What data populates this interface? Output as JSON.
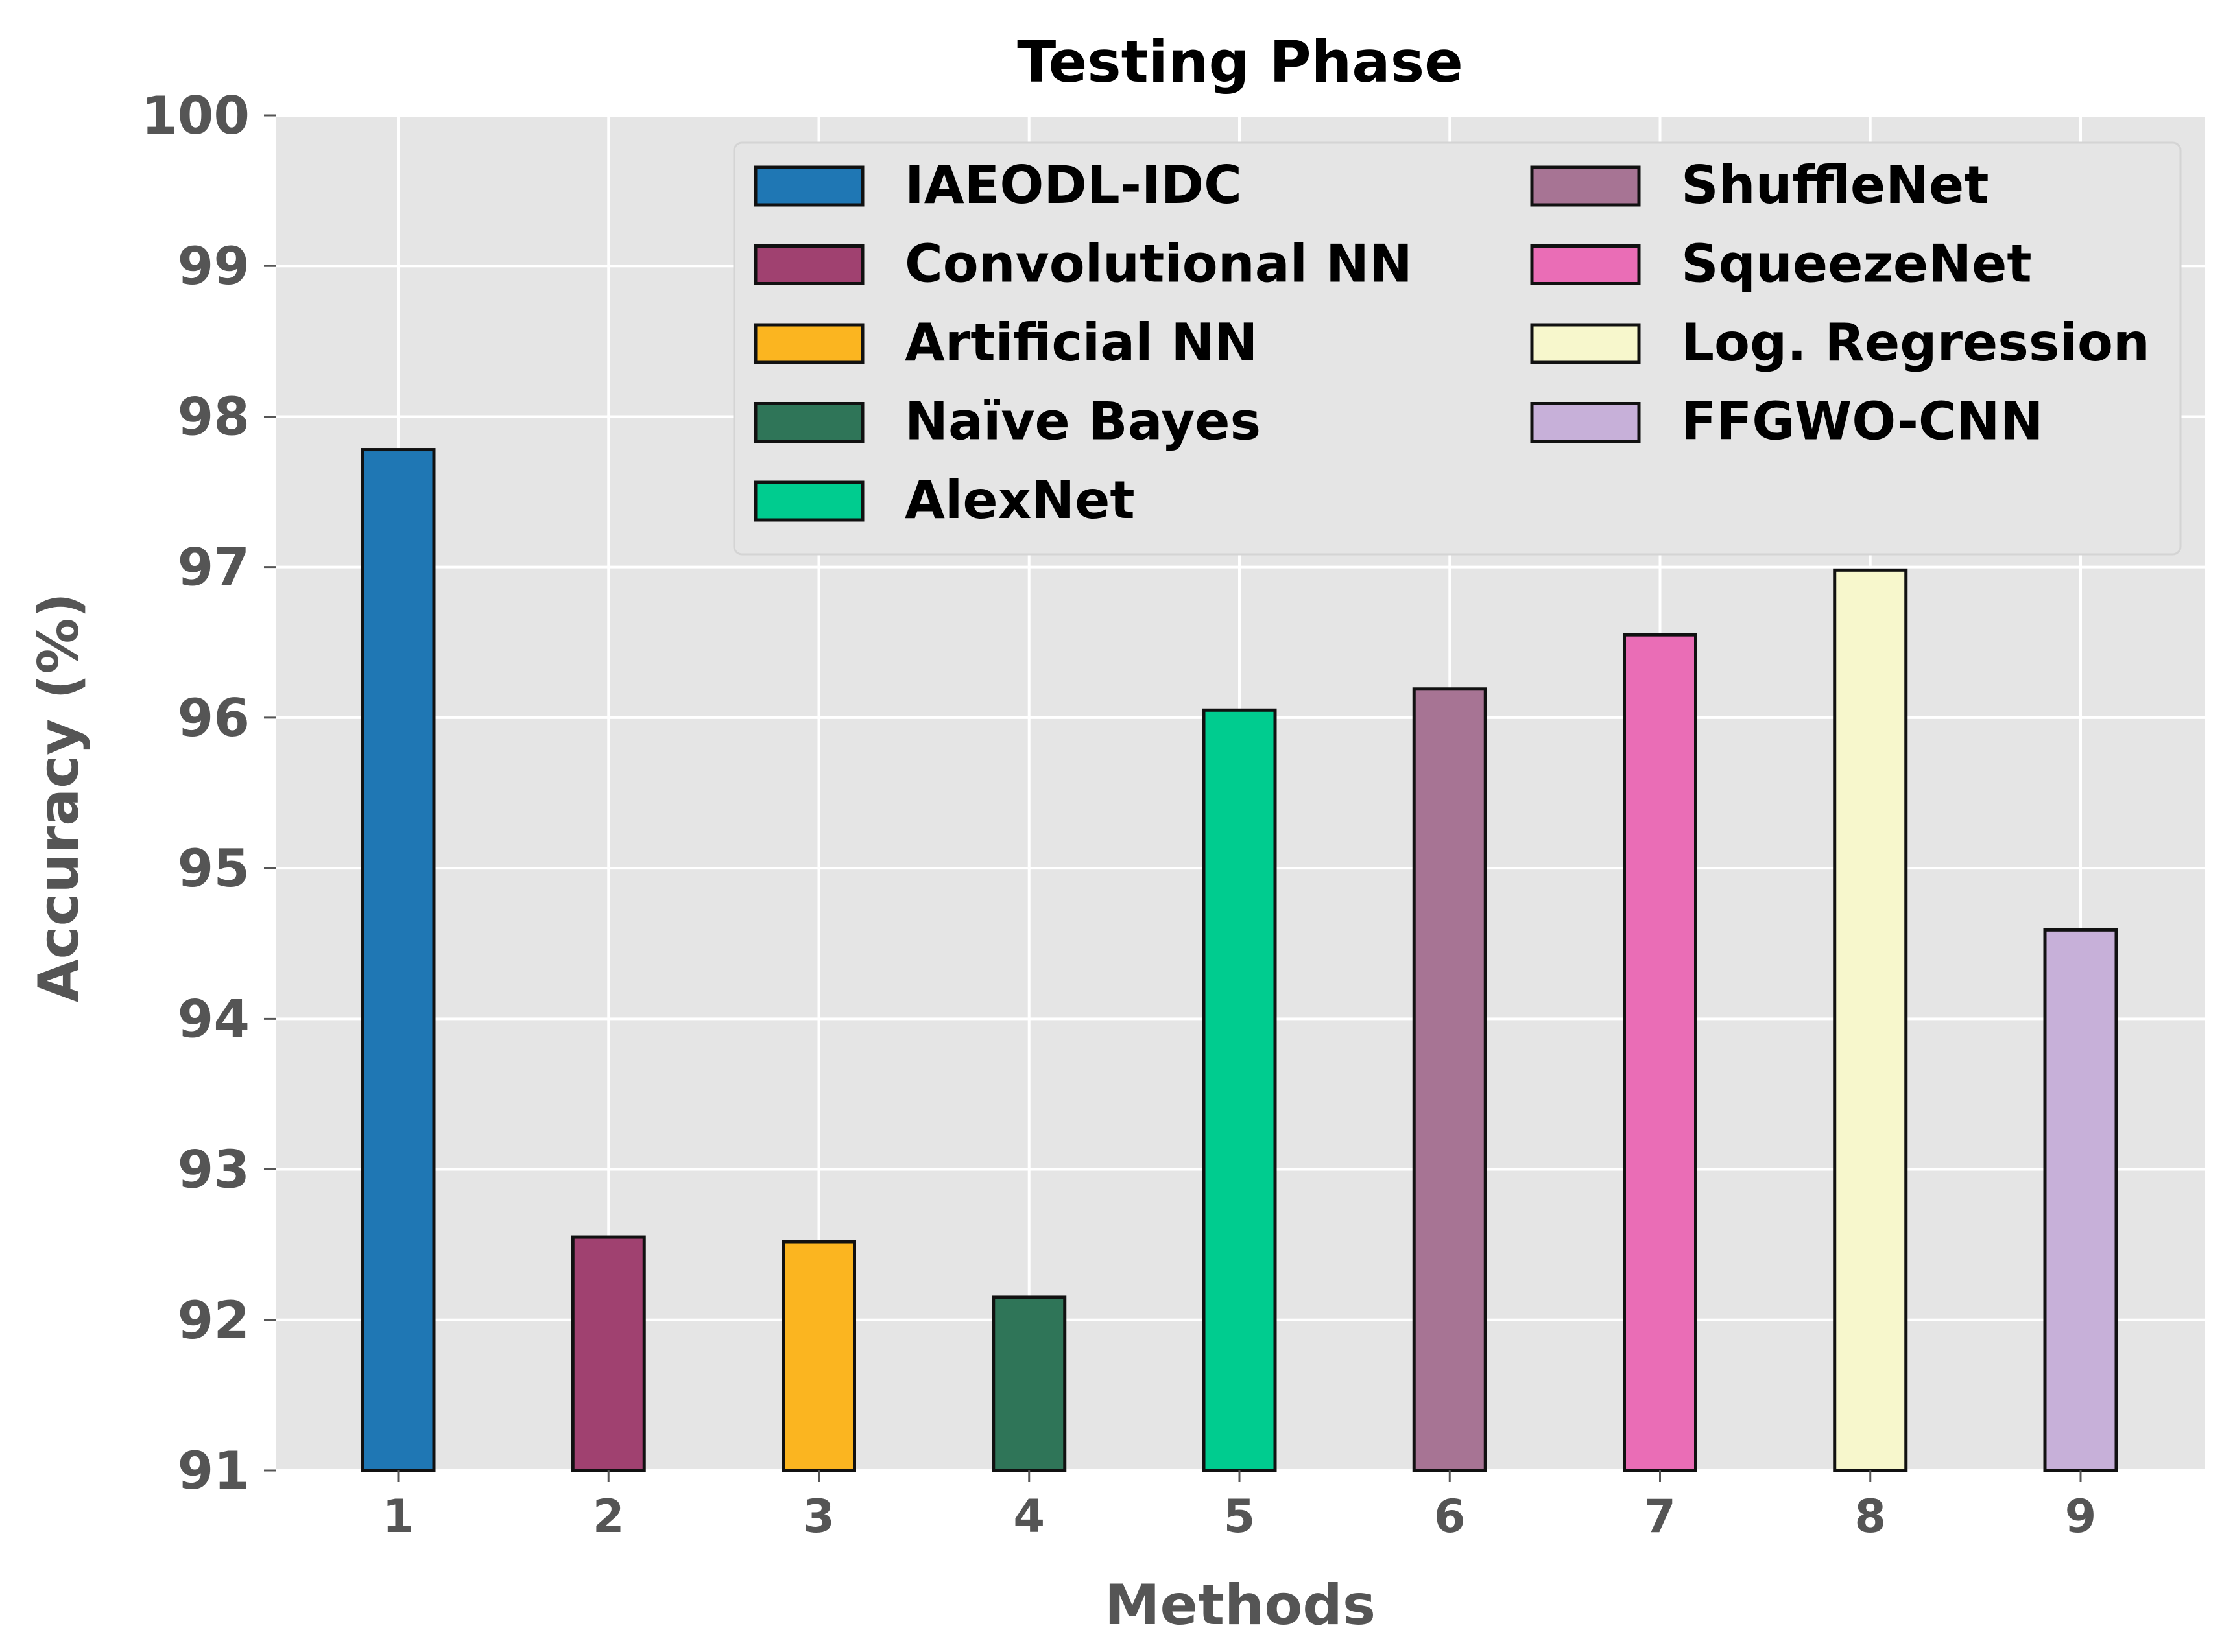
{
  "chart_data": {
    "type": "bar",
    "title": "Testing Phase",
    "xlabel": "Methods",
    "ylabel": "Accuracy (%)",
    "ylim": [
      91,
      100
    ],
    "yticks": [
      "91",
      "92",
      "93",
      "94",
      "95",
      "96",
      "97",
      "98",
      "99",
      "100"
    ],
    "categories": [
      "1",
      "2",
      "3",
      "4",
      "5",
      "6",
      "7",
      "8",
      "9"
    ],
    "values": [
      97.78,
      92.55,
      92.52,
      92.15,
      96.05,
      96.19,
      96.55,
      96.98,
      94.59
    ],
    "series": [
      {
        "name": "IAEODL-IDC",
        "value": 97.78,
        "color": "#1f77b4"
      },
      {
        "name": "Convolutional NN",
        "value": 92.55,
        "color": "#a04170"
      },
      {
        "name": "Artificial NN",
        "value": 92.52,
        "color": "#fbb520"
      },
      {
        "name": "Naïve Bayes",
        "value": 92.15,
        "color": "#2f7558"
      },
      {
        "name": "AlexNet",
        "value": 96.05,
        "color": "#00cc8f"
      },
      {
        "name": "ShuffleNet",
        "value": 96.19,
        "color": "#a77494"
      },
      {
        "name": "SqueezeNet",
        "value": 96.55,
        "color": "#ea6db6"
      },
      {
        "name": "Log. Regression",
        "value": 96.98,
        "color": "#f7f7cc"
      },
      {
        "name": "FFGWO-CNN",
        "value": 94.59,
        "color": "#c7b0d9"
      }
    ],
    "legend_position": "upper-right",
    "grid": true,
    "background": "#e5e5e5"
  }
}
